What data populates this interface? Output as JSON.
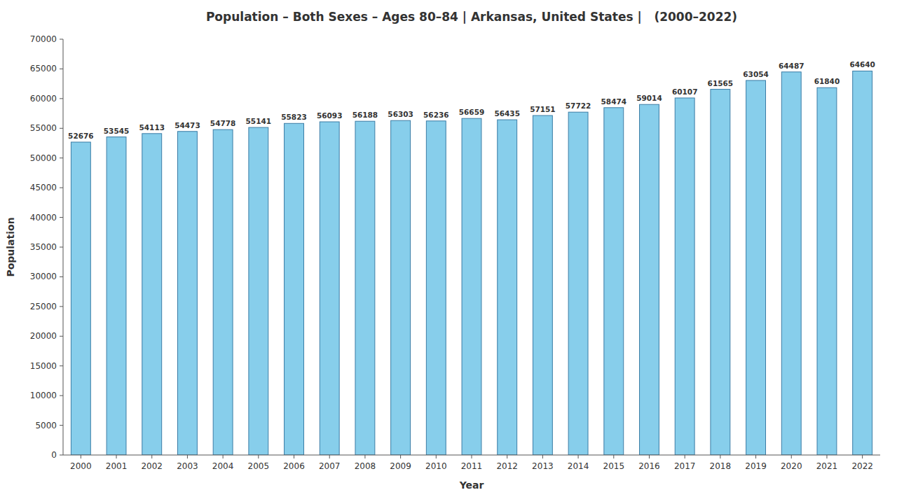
{
  "chart_data": {
    "type": "bar",
    "title": "Population – Both Sexes – Ages 80–84 | Arkansas, United States |   (2000–2022)",
    "xlabel": "Year",
    "ylabel": "Population",
    "categories": [
      "2000",
      "2001",
      "2002",
      "2003",
      "2004",
      "2005",
      "2006",
      "2007",
      "2008",
      "2009",
      "2010",
      "2011",
      "2012",
      "2013",
      "2014",
      "2015",
      "2016",
      "2017",
      "2018",
      "2019",
      "2020",
      "2021",
      "2022"
    ],
    "values": [
      52676,
      53545,
      54113,
      54473,
      54778,
      55141,
      55823,
      56093,
      56188,
      56303,
      56236,
      56659,
      56435,
      57151,
      57722,
      58474,
      59014,
      60107,
      61565,
      63054,
      64487,
      61840,
      64640
    ],
    "color": "#87CEEB",
    "ylim": [
      0,
      70000
    ],
    "yticks": [
      0,
      5000,
      10000,
      15000,
      20000,
      25000,
      30000,
      35000,
      40000,
      45000,
      50000,
      55000,
      60000,
      65000,
      70000
    ],
    "grid": false,
    "data_labels": true
  }
}
